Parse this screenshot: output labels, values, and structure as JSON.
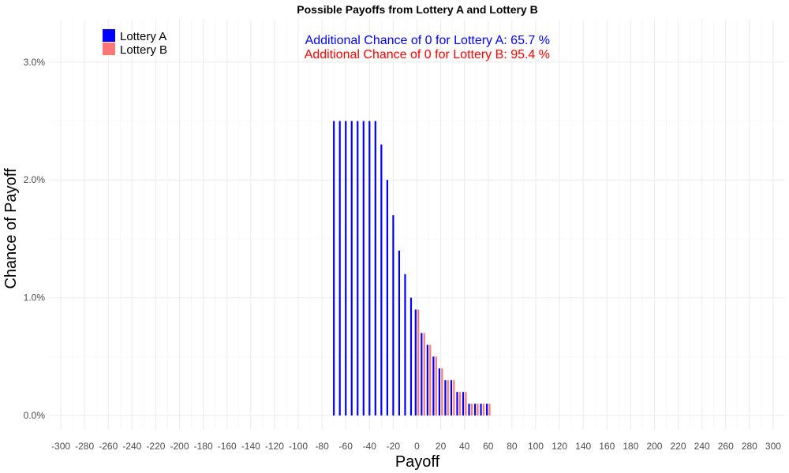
{
  "chart_data": {
    "type": "bar",
    "title": "Possible Payoffs from Lottery A and Lottery B",
    "xlabel": "Payoff",
    "ylabel": "Chance of Payoff",
    "xlim": [
      -310,
      310
    ],
    "ylim": [
      -0.0012,
      0.0336
    ],
    "x_ticks": [
      -300,
      -280,
      -260,
      -240,
      -220,
      -200,
      -180,
      -160,
      -140,
      -120,
      -100,
      -80,
      -60,
      -40,
      -20,
      0,
      20,
      40,
      60,
      80,
      100,
      120,
      140,
      160,
      180,
      200,
      220,
      240,
      260,
      280,
      300
    ],
    "y_ticks": [
      0,
      0.01,
      0.02,
      0.03
    ],
    "y_tick_labels": [
      "0.0%",
      "1.0%",
      "2.0%",
      "3.0%"
    ],
    "grid": true,
    "legend_position": "top-left",
    "series": [
      {
        "name": "Lottery A",
        "color": "#0000ff",
        "x": [
          -70,
          -65,
          -60,
          -55,
          -50,
          -45,
          -40,
          -35,
          -30,
          -25,
          -20,
          -15,
          -10,
          -5,
          0,
          5,
          10,
          15,
          20,
          25,
          30,
          35,
          40,
          45,
          50,
          55,
          60
        ],
        "values": [
          0.025,
          0.025,
          0.025,
          0.025,
          0.025,
          0.025,
          0.025,
          0.025,
          0.023,
          0.02,
          0.017,
          0.014,
          0.012,
          0.01,
          0.009,
          0.007,
          0.006,
          0.005,
          0.004,
          0.003,
          0.003,
          0.002,
          0.002,
          0.001,
          0.001,
          0.001,
          0.001
        ]
      },
      {
        "name": "Lottery B",
        "color": "#ff7777",
        "x": [
          0,
          5,
          10,
          15,
          20,
          25,
          30,
          35,
          40,
          45,
          50,
          55,
          60
        ],
        "values": [
          0.009,
          0.007,
          0.006,
          0.005,
          0.004,
          0.003,
          0.003,
          0.002,
          0.002,
          0.001,
          0.001,
          0.001,
          0.001
        ]
      }
    ],
    "annotations": [
      {
        "text": "Additional Chance of 0 for Lottery A:  65.7 %",
        "color": "#0000ff"
      },
      {
        "text": "Additional Chance of 0 for Lottery B:  95.4 %",
        "color": "#ff0000"
      }
    ]
  }
}
